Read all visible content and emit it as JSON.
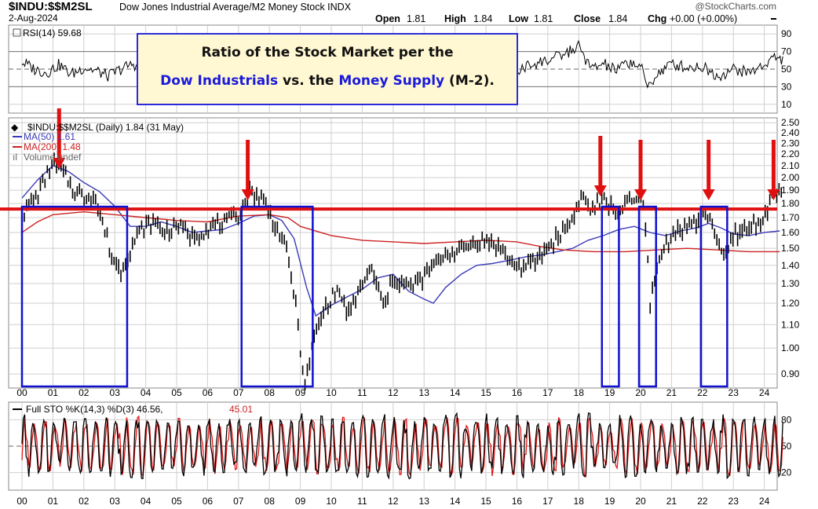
{
  "header": {
    "symbol": "$INDU:$$M2SL",
    "description": "Dow Jones Industrial Average/M2 Money Stock INDX",
    "date": "2-Aug-2024",
    "watermark": "@StockCharts.com",
    "quote": {
      "open_label": "Open",
      "open": "1.81",
      "high_label": "High",
      "high": "1.84",
      "low_label": "Low",
      "low": "1.81",
      "close_label": "Close",
      "close": "1.84",
      "chg_label": "Chg",
      "chg": "+0.00 (+0.00%)"
    }
  },
  "callout": {
    "line1": "Ratio of the Stock Market per the",
    "line2": {
      "blue1": "Dow Industrials",
      "mid": " vs. the ",
      "blue2": "Money Supply",
      "tail": " (M-2)."
    }
  },
  "colors": {
    "price": "#000000",
    "ma50": "#3b3bb8",
    "ma200": "#cc2222",
    "resistance": "#e01010",
    "box": "#1010d0",
    "arrow": "#e01010",
    "sto_k": "#000000",
    "sto_d": "#e01818",
    "grid": "#999999"
  },
  "x_axis": {
    "labels": [
      "00",
      "01",
      "02",
      "03",
      "04",
      "05",
      "06",
      "07",
      "08",
      "09",
      "10",
      "11",
      "12",
      "13",
      "14",
      "15",
      "16",
      "17",
      "18",
      "19",
      "20",
      "21",
      "22",
      "23",
      "24"
    ]
  },
  "panels": {
    "rsi": {
      "legend": "RSI(14) 59.68",
      "ticks": [
        "90",
        "70",
        "50",
        "30",
        "10"
      ],
      "overbought": 70,
      "oversold": 30
    },
    "price": {
      "legend_main": "$INDU:$$M2SL (Daily) 1.84 (31 May)",
      "legend_ma50": "MA(50) 1.61",
      "legend_ma200": "MA(200) 1.48",
      "legend_volume": "Volume undef",
      "ticks": [
        "2.50",
        "2.40",
        "2.30",
        "2.20",
        "2.10",
        "2.00",
        "1.90",
        "1.80",
        "1.70",
        "1.60",
        "1.50",
        "1.40",
        "1.30",
        "1.20",
        "1.10",
        "1.00",
        "0.90"
      ],
      "log_scale": true
    },
    "sto": {
      "legend_prefix": "Full STO %K(14,3) %D(3) 46.56,",
      "legend_d": "45.01",
      "ticks": [
        "80",
        "50",
        "20"
      ]
    }
  },
  "chart_data": {
    "type": "line",
    "title": "$INDU:$$M2SL",
    "x_unit": "year",
    "series": [
      {
        "name": "$INDU:$$M2SL",
        "points": [
          [
            2000.0,
            1.73
          ],
          [
            2000.5,
            1.85
          ],
          [
            2001.0,
            2.12
          ],
          [
            2001.3,
            2.05
          ],
          [
            2001.6,
            1.93
          ],
          [
            2002.0,
            1.84
          ],
          [
            2002.3,
            1.87
          ],
          [
            2002.6,
            1.66
          ],
          [
            2002.9,
            1.45
          ],
          [
            2003.2,
            1.36
          ],
          [
            2003.5,
            1.5
          ],
          [
            2003.9,
            1.63
          ],
          [
            2004.2,
            1.68
          ],
          [
            2004.6,
            1.6
          ],
          [
            2005.0,
            1.65
          ],
          [
            2005.5,
            1.58
          ],
          [
            2006.0,
            1.62
          ],
          [
            2006.5,
            1.66
          ],
          [
            2007.0,
            1.72
          ],
          [
            2007.4,
            1.9
          ],
          [
            2007.8,
            1.82
          ],
          [
            2008.2,
            1.65
          ],
          [
            2008.5,
            1.52
          ],
          [
            2008.8,
            1.25
          ],
          [
            2009.0,
            1.0
          ],
          [
            2009.15,
            0.85
          ],
          [
            2009.4,
            1.02
          ],
          [
            2009.8,
            1.18
          ],
          [
            2010.2,
            1.27
          ],
          [
            2010.6,
            1.14
          ],
          [
            2011.0,
            1.3
          ],
          [
            2011.3,
            1.38
          ],
          [
            2011.7,
            1.18
          ],
          [
            2012.0,
            1.33
          ],
          [
            2012.5,
            1.28
          ],
          [
            2012.9,
            1.32
          ],
          [
            2013.3,
            1.4
          ],
          [
            2013.8,
            1.48
          ],
          [
            2014.3,
            1.5
          ],
          [
            2014.8,
            1.55
          ],
          [
            2015.3,
            1.53
          ],
          [
            2015.8,
            1.42
          ],
          [
            2016.2,
            1.38
          ],
          [
            2016.7,
            1.44
          ],
          [
            2017.2,
            1.55
          ],
          [
            2017.7,
            1.66
          ],
          [
            2018.1,
            1.85
          ],
          [
            2018.4,
            1.76
          ],
          [
            2018.8,
            1.82
          ],
          [
            2019.2,
            1.74
          ],
          [
            2019.6,
            1.8
          ],
          [
            2020.0,
            1.84
          ],
          [
            2020.2,
            1.6
          ],
          [
            2020.3,
            1.2
          ],
          [
            2020.6,
            1.42
          ],
          [
            2021.0,
            1.6
          ],
          [
            2021.5,
            1.64
          ],
          [
            2021.9,
            1.68
          ],
          [
            2022.1,
            1.74
          ],
          [
            2022.4,
            1.62
          ],
          [
            2022.7,
            1.42
          ],
          [
            2023.0,
            1.58
          ],
          [
            2023.5,
            1.63
          ],
          [
            2023.9,
            1.68
          ],
          [
            2024.2,
            1.8
          ],
          [
            2024.35,
            1.92
          ],
          [
            2024.55,
            1.84
          ]
        ]
      },
      {
        "name": "MA(50)",
        "points": [
          [
            2000.0,
            1.84
          ],
          [
            2000.5,
            1.98
          ],
          [
            2001.0,
            2.1
          ],
          [
            2001.5,
            2.05
          ],
          [
            2002.0,
            1.96
          ],
          [
            2002.5,
            1.89
          ],
          [
            2003.0,
            1.78
          ],
          [
            2003.5,
            1.64
          ],
          [
            2004.0,
            1.64
          ],
          [
            2004.5,
            1.67
          ],
          [
            2005.0,
            1.64
          ],
          [
            2005.5,
            1.6
          ],
          [
            2006.0,
            1.61
          ],
          [
            2006.5,
            1.62
          ],
          [
            2007.0,
            1.66
          ],
          [
            2007.5,
            1.71
          ],
          [
            2008.0,
            1.72
          ],
          [
            2008.4,
            1.68
          ],
          [
            2008.8,
            1.56
          ],
          [
            2009.2,
            1.28
          ],
          [
            2009.5,
            1.14
          ],
          [
            2010.0,
            1.19
          ],
          [
            2010.5,
            1.23
          ],
          [
            2011.0,
            1.27
          ],
          [
            2011.5,
            1.33
          ],
          [
            2012.0,
            1.35
          ],
          [
            2012.5,
            1.26
          ],
          [
            2013.0,
            1.22
          ],
          [
            2013.3,
            1.2
          ],
          [
            2013.7,
            1.28
          ],
          [
            2014.2,
            1.35
          ],
          [
            2014.7,
            1.4
          ],
          [
            2015.2,
            1.41
          ],
          [
            2015.8,
            1.43
          ],
          [
            2016.3,
            1.45
          ],
          [
            2016.8,
            1.46
          ],
          [
            2017.3,
            1.48
          ],
          [
            2017.8,
            1.5
          ],
          [
            2018.3,
            1.55
          ],
          [
            2018.8,
            1.58
          ],
          [
            2019.3,
            1.62
          ],
          [
            2019.8,
            1.64
          ],
          [
            2020.3,
            1.6
          ],
          [
            2020.8,
            1.58
          ],
          [
            2021.3,
            1.61
          ],
          [
            2021.8,
            1.63
          ],
          [
            2022.2,
            1.66
          ],
          [
            2022.6,
            1.63
          ],
          [
            2023.0,
            1.59
          ],
          [
            2023.5,
            1.58
          ],
          [
            2024.0,
            1.6
          ],
          [
            2024.5,
            1.61
          ]
        ]
      },
      {
        "name": "MA(200)",
        "points": [
          [
            2000.0,
            1.6
          ],
          [
            2000.5,
            1.67
          ],
          [
            2001.0,
            1.72
          ],
          [
            2002.0,
            1.74
          ],
          [
            2003.0,
            1.72
          ],
          [
            2004.0,
            1.7
          ],
          [
            2005.0,
            1.68
          ],
          [
            2006.0,
            1.67
          ],
          [
            2007.0,
            1.71
          ],
          [
            2008.0,
            1.72
          ],
          [
            2008.6,
            1.7
          ],
          [
            2009.0,
            1.64
          ],
          [
            2010.0,
            1.58
          ],
          [
            2011.0,
            1.55
          ],
          [
            2012.0,
            1.54
          ],
          [
            2013.0,
            1.53
          ],
          [
            2014.0,
            1.54
          ],
          [
            2015.0,
            1.55
          ],
          [
            2016.0,
            1.54
          ],
          [
            2016.8,
            1.51
          ],
          [
            2017.5,
            1.49
          ],
          [
            2018.5,
            1.48
          ],
          [
            2019.5,
            1.48
          ],
          [
            2020.5,
            1.49
          ],
          [
            2021.5,
            1.5
          ],
          [
            2022.5,
            1.49
          ],
          [
            2023.5,
            1.48
          ],
          [
            2024.5,
            1.48
          ]
        ]
      }
    ],
    "resistance_level": 1.76,
    "arrows_at": [
      2001.2,
      2007.3,
      2018.7,
      2020.0,
      2022.2,
      2024.3
    ],
    "boxes": [
      {
        "from": 2000.0,
        "to": 2003.4
      },
      {
        "from": 2007.1,
        "to": 2009.4
      },
      {
        "from": 2018.75,
        "to": 2019.3
      },
      {
        "from": 2019.95,
        "to": 2020.5
      },
      {
        "from": 2021.95,
        "to": 2022.8
      }
    ],
    "rsi": {
      "name": "RSI(14)",
      "ylim": [
        0,
        100
      ],
      "points": [
        [
          2000.0,
          58
        ],
        [
          2000.4,
          50
        ],
        [
          2000.8,
          46
        ],
        [
          2001.2,
          55
        ],
        [
          2001.6,
          44
        ],
        [
          2002.0,
          52
        ],
        [
          2002.4,
          48
        ],
        [
          2002.8,
          42
        ],
        [
          2003.2,
          50
        ],
        [
          2003.6,
          56
        ],
        [
          2004.0,
          49
        ],
        [
          2004.5,
          53
        ],
        [
          2005.0,
          47
        ],
        [
          2005.5,
          52
        ],
        [
          2006.0,
          51
        ],
        [
          2006.5,
          50
        ],
        [
          2007.0,
          54
        ],
        [
          2007.5,
          56
        ],
        [
          2008.0,
          48
        ],
        [
          2008.5,
          44
        ],
        [
          2009.0,
          38
        ],
        [
          2009.5,
          58
        ],
        [
          2010.0,
          52
        ],
        [
          2010.5,
          45
        ],
        [
          2011.0,
          55
        ],
        [
          2011.5,
          43
        ],
        [
          2012.0,
          53
        ],
        [
          2012.5,
          51
        ],
        [
          2013.0,
          58
        ],
        [
          2013.5,
          53
        ],
        [
          2014.0,
          54
        ],
        [
          2014.5,
          56
        ],
        [
          2015.0,
          50
        ],
        [
          2015.5,
          52
        ],
        [
          2016.0,
          47
        ],
        [
          2016.5,
          56
        ],
        [
          2017.0,
          60
        ],
        [
          2017.5,
          66
        ],
        [
          2018.0,
          76
        ],
        [
          2018.4,
          50
        ],
        [
          2018.8,
          56
        ],
        [
          2019.2,
          48
        ],
        [
          2019.6,
          58
        ],
        [
          2020.0,
          54
        ],
        [
          2020.2,
          30
        ],
        [
          2020.6,
          46
        ],
        [
          2021.0,
          56
        ],
        [
          2021.5,
          52
        ],
        [
          2022.0,
          53
        ],
        [
          2022.5,
          42
        ],
        [
          2023.0,
          50
        ],
        [
          2023.5,
          46
        ],
        [
          2024.0,
          55
        ],
        [
          2024.3,
          64
        ],
        [
          2024.55,
          60
        ]
      ]
    },
    "stochastic": {
      "name": "Full STO %K(14,3) %D(3)",
      "ylim": [
        0,
        100
      ],
      "k_last": 46.56,
      "d_last": 45.01
    },
    "ylabel": "",
    "xlabel": "",
    "ylim": [
      0.85,
      2.55
    ],
    "y_scale": "log",
    "grid": true
  }
}
